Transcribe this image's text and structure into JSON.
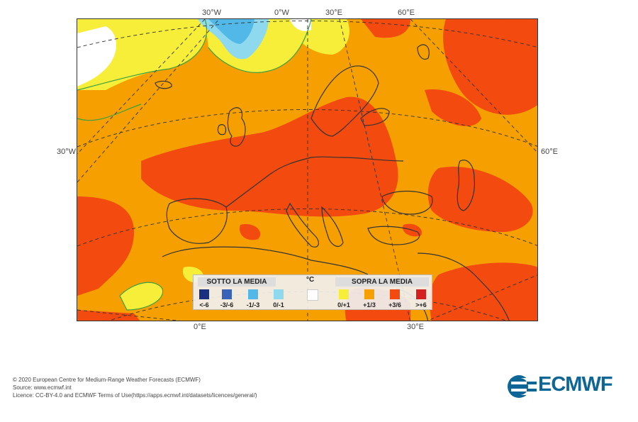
{
  "map": {
    "lon_labels": {
      "top_30w": "30°W",
      "top_0w": "0°W",
      "top_30e": "30°E",
      "top_60e": "60°E",
      "left_30w": "30°W",
      "right_60e": "60°E",
      "bottom_0e": "0°E",
      "bottom_30e": "30°E"
    },
    "colors": {
      "land_bg": "#f5a000",
      "anomaly_1_3": "#f5a000",
      "anomaly_3_6": "#f24a0f",
      "anomaly_0_1": "#f7ee3a",
      "anomaly_neutral": "#ffffff",
      "anomaly_m1_0": "#8fd9ee",
      "anomaly_m3_m1": "#52b8e8",
      "contour_green": "#3aa040",
      "coast": "#333333"
    }
  },
  "legend": {
    "below_title": "SOTTO LA MEDIA",
    "above_title": "SOPRA LA MEDIA",
    "unit": "°C",
    "items": [
      {
        "label": "<-6",
        "color": "#1a2f80"
      },
      {
        "label": "-3/-6",
        "color": "#3a62b8"
      },
      {
        "label": "-1/-3",
        "color": "#52b8e8"
      },
      {
        "label": "0/-1",
        "color": "#8fd9ee"
      },
      {
        "label": "",
        "color": "#ffffff"
      },
      {
        "label": "0/+1",
        "color": "#f7ee3a"
      },
      {
        "label": "+1/3",
        "color": "#f5a000"
      },
      {
        "label": "+3/6",
        "color": "#f24a0f"
      },
      {
        "label": ">+6",
        "color": "#d42020"
      }
    ]
  },
  "footer": {
    "line1": "© 2020 European Centre for Medium-Range Weather Forecasts (ECMWF)",
    "line2": "Source: www.ecmwf.int",
    "line3": "Licence: CC-BY-4.0 and ECMWF Terms of Use(https://apps.ecmwf.int/datasets/licences/general/)"
  },
  "logo": {
    "text": "ECMWF",
    "color": "#0d6696"
  }
}
